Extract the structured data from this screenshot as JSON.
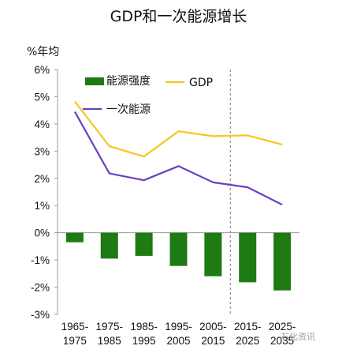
{
  "title": "GDP和一次能源增长",
  "unit_label": "%年均",
  "watermark": "石化资讯",
  "chart_data": {
    "type": "bar+line",
    "categories": [
      "1965-\n1975",
      "1975-\n1985",
      "1985-\n1995",
      "1995-\n2005",
      "2005-\n2015",
      "2015-\n2025",
      "2025-\n2035"
    ],
    "ylim": [
      -3,
      6
    ],
    "yticks": [
      "6%",
      "5%",
      "4%",
      "3%",
      "2%",
      "1%",
      "0%",
      "-1%",
      "-2%",
      "-3%"
    ],
    "ytick_values": [
      6,
      5,
      4,
      3,
      2,
      1,
      0,
      -1,
      -2,
      -3
    ],
    "series": [
      {
        "name": "能源强度",
        "kind": "bar",
        "color": "#1e7a12",
        "values": [
          -0.35,
          -0.95,
          -0.85,
          -1.22,
          -1.6,
          -1.82,
          -2.12
        ]
      },
      {
        "name": "GDP",
        "kind": "line",
        "color": "#f2c81f",
        "values": [
          4.82,
          3.18,
          2.8,
          3.73,
          3.55,
          3.58,
          3.24
        ]
      },
      {
        "name": "一次能源",
        "kind": "line",
        "color": "#6a3fc4",
        "values": [
          4.45,
          2.18,
          1.93,
          2.45,
          1.85,
          1.67,
          1.03
        ]
      }
    ],
    "projection_divider_after_index": 4,
    "grid": false,
    "legend": "top-left"
  }
}
